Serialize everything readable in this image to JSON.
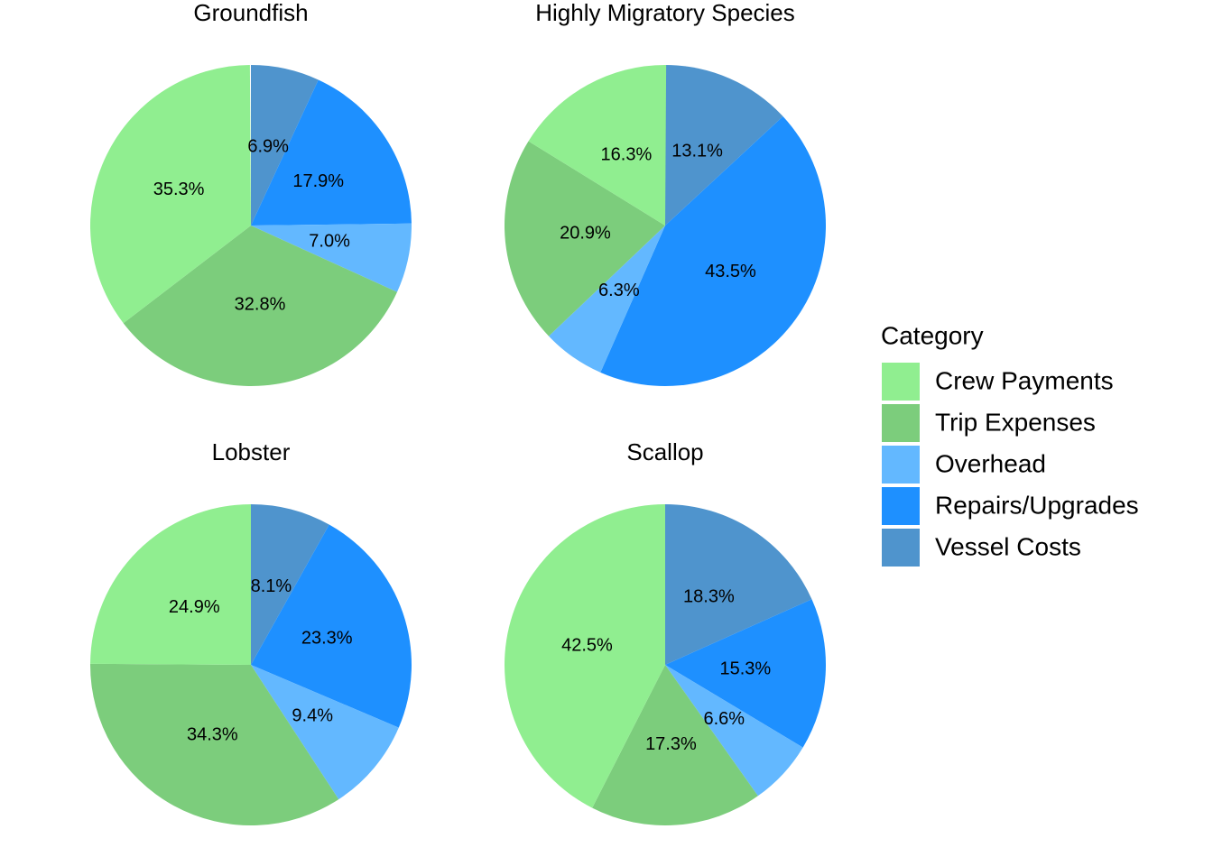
{
  "chart_data": [
    {
      "type": "pie",
      "title": "Groundfish",
      "values": [
        35.3,
        32.8,
        7.0,
        17.9,
        6.9
      ],
      "value_labels": [
        "35.3%",
        "32.8%",
        "7.0%",
        "17.9%",
        "6.9%"
      ]
    },
    {
      "type": "pie",
      "title": "Highly Migratory Species",
      "values": [
        16.3,
        20.9,
        6.3,
        43.5,
        13.1
      ],
      "value_labels": [
        "16.3%",
        "20.9%",
        "6.3%",
        "43.5%",
        "13.1%"
      ]
    },
    {
      "type": "pie",
      "title": "Lobster",
      "values": [
        24.9,
        34.3,
        9.4,
        23.3,
        8.1
      ],
      "value_labels": [
        "24.9%",
        "34.3%",
        "9.4%",
        "23.3%",
        "8.1%"
      ]
    },
    {
      "type": "pie",
      "title": "Scallop",
      "values": [
        42.5,
        17.3,
        6.6,
        15.3,
        18.3
      ],
      "value_labels": [
        "42.5%",
        "17.3%",
        "6.6%",
        "15.3%",
        "18.3%"
      ]
    }
  ],
  "legend": {
    "title": "Category",
    "categories": [
      "Crew Payments",
      "Trip Expenses",
      "Overhead",
      "Repairs/Upgrades",
      "Vessel Costs"
    ],
    "colors": [
      "#90ee90",
      "#7ccd7c",
      "#63b8ff",
      "#1e90ff",
      "#4f94cd"
    ]
  }
}
